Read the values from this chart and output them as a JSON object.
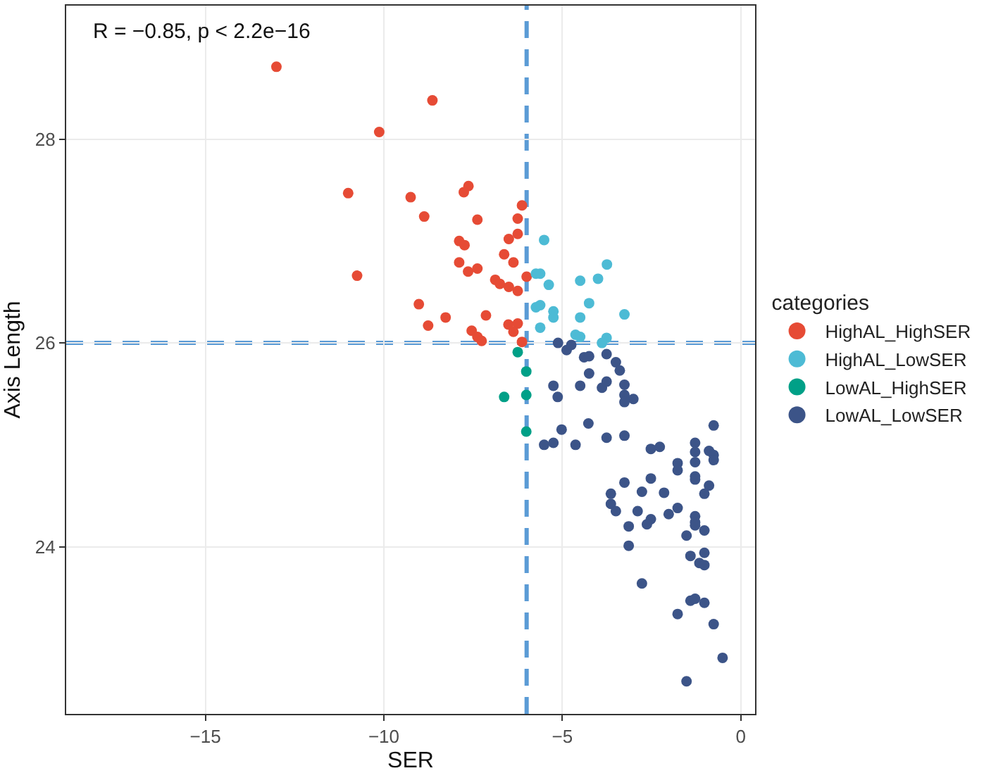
{
  "chart_data": {
    "type": "scatter",
    "xlabel": "SER",
    "ylabel": "Axis Length",
    "legend_title": "categories",
    "annotations": [
      "R = −0.85, p < 2.2e−16"
    ],
    "series": [
      {
        "name": "HighAL_HighSER",
        "color": "#e64b35",
        "x": [
          -13.01,
          -8.64,
          -10.13,
          -11.0,
          -9.25,
          -8.87,
          -10.75,
          -9.02,
          -8.76,
          -8.27,
          -7.63,
          -7.76,
          -7.38,
          -7.89,
          -7.74,
          -7.89,
          -7.64,
          -7.38,
          -7.54,
          -7.38,
          -7.26,
          -7.14,
          -6.88,
          -6.75,
          -6.5,
          -6.25,
          -6.63,
          -6.37,
          -6.5,
          -6.25,
          -6.25,
          -6.13,
          -6.51,
          -6.25,
          -6.37,
          -6.13,
          -6.0
        ],
        "values": [
          28.71,
          28.38,
          28.07,
          27.47,
          27.43,
          27.24,
          26.66,
          26.38,
          26.17,
          26.25,
          27.54,
          27.48,
          27.21,
          27.0,
          26.96,
          26.79,
          26.7,
          26.73,
          26.12,
          26.06,
          26.02,
          26.27,
          26.62,
          26.58,
          26.55,
          26.51,
          26.87,
          26.79,
          27.02,
          27.07,
          27.22,
          27.35,
          26.18,
          26.19,
          26.11,
          26.01,
          26.65
        ]
      },
      {
        "name": "HighAL_LowSER",
        "color": "#4dbbd5",
        "x": [
          -5.51,
          -5.74,
          -5.62,
          -5.38,
          -4.5,
          -4.0,
          -3.75,
          -5.74,
          -5.62,
          -5.25,
          -5.25,
          -4.25,
          -4.5,
          -3.26,
          -5.62,
          -4.63,
          -4.5,
          -3.76,
          -3.89
        ],
        "values": [
          27.01,
          26.68,
          26.68,
          26.57,
          26.61,
          26.63,
          26.77,
          26.35,
          26.37,
          26.31,
          26.25,
          26.39,
          26.25,
          26.28,
          26.15,
          26.08,
          26.06,
          26.05,
          26.0
        ]
      },
      {
        "name": "LowAL_HighSER",
        "color": "#00a087",
        "x": [
          -6.25,
          -6.01,
          -6.63,
          -6.01,
          -6.01
        ],
        "values": [
          25.91,
          25.72,
          25.47,
          25.49,
          25.13
        ]
      },
      {
        "name": "LowAL_LowSER",
        "color": "#3c5488",
        "x": [
          -5.12,
          -4.88,
          -4.75,
          -4.39,
          -4.25,
          -3.76,
          -3.5,
          -3.39,
          -4.25,
          -5.25,
          -5.13,
          -4.5,
          -3.89,
          -3.76,
          -3.26,
          -3.26,
          -3.01,
          -3.26,
          -5.02,
          -4.27,
          -3.76,
          -3.26,
          -5.51,
          -5.25,
          -4.63,
          -0.76,
          -2.52,
          -2.27,
          -1.28,
          -1.28,
          -0.89,
          -0.76,
          -0.76,
          -1.77,
          -1.77,
          -1.28,
          -1.28,
          -1.28,
          -0.89,
          -1.02,
          -3.26,
          -2.52,
          -2.77,
          -2.15,
          -3.64,
          -3.64,
          -3.5,
          -2.89,
          -2.52,
          -2.63,
          -2.02,
          -1.77,
          -3.14,
          -1.28,
          -1.28,
          -1.28,
          -1.02,
          -1.52,
          -3.14,
          -1.41,
          -1.02,
          -1.16,
          -1.02,
          -2.77,
          -1.41,
          -1.28,
          -1.02,
          -1.77,
          -0.76,
          -0.51,
          -1.52
        ],
        "values": [
          26.0,
          25.93,
          25.98,
          25.86,
          25.87,
          25.89,
          25.81,
          25.73,
          25.7,
          25.58,
          25.47,
          25.58,
          25.56,
          25.62,
          25.59,
          25.49,
          25.45,
          25.42,
          25.15,
          25.21,
          25.07,
          25.09,
          25.0,
          25.02,
          25.0,
          25.19,
          24.96,
          24.98,
          25.02,
          24.93,
          24.94,
          24.9,
          24.85,
          24.82,
          24.75,
          24.83,
          24.69,
          24.66,
          24.6,
          24.52,
          24.63,
          24.67,
          24.54,
          24.53,
          24.52,
          24.42,
          24.35,
          24.35,
          24.27,
          24.22,
          24.32,
          24.38,
          24.2,
          24.3,
          24.24,
          24.21,
          24.16,
          24.11,
          24.01,
          23.91,
          23.94,
          23.84,
          23.82,
          23.64,
          23.47,
          23.49,
          23.45,
          23.34,
          23.24,
          22.91,
          22.68
        ]
      }
    ],
    "xlim": [
      -18.9,
      0.4
    ],
    "xticks": [
      -15,
      -10,
      -5,
      0
    ],
    "ylim": [
      22.36,
      29.31
    ],
    "yticks": [
      24,
      26,
      28
    ],
    "ref_lines": [
      {
        "axis": "x",
        "value": -6,
        "color": "#5b9bd5",
        "line_style": "dashed"
      },
      {
        "axis": "y",
        "value": 26,
        "color": "#5b9bd5",
        "line_style": "dashed"
      }
    ],
    "grid": true,
    "legend": "right",
    "marker": "circle"
  }
}
